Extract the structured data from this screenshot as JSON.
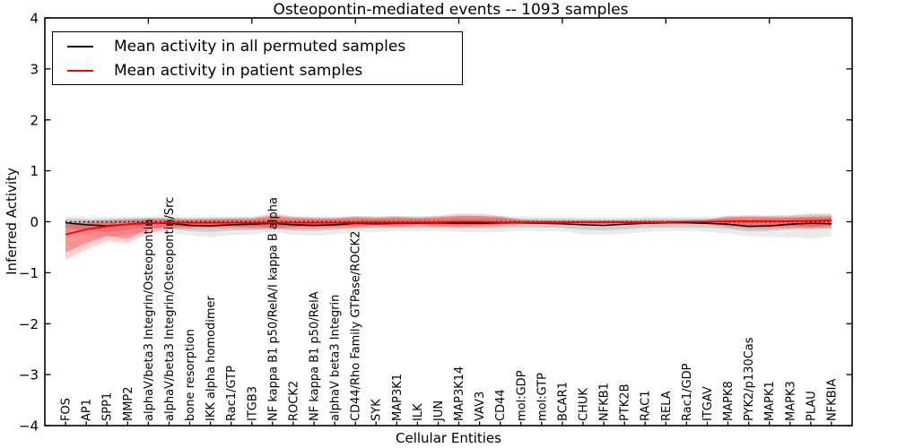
{
  "chart_data": {
    "type": "line",
    "title": "Osteopontin-mediated events -- 1093 samples",
    "xlabel": "Cellular Entities",
    "ylabel": "Inferred Activity",
    "ylim": [
      -4,
      4
    ],
    "yticks": [
      -4,
      -3,
      -2,
      -1,
      0,
      1,
      2,
      3,
      4
    ],
    "xticks_top_values": [
      5,
      10,
      15,
      20,
      25,
      30,
      35
    ],
    "zero_line": true,
    "grid": false,
    "legend_position": "upper left",
    "categories": [
      "FOS",
      "AP1",
      "SPP1",
      "MMP2",
      "alphaV/beta3 Integrin/Osteopontin",
      "alphaV/beta3 Integrin/Osteopontin/Src",
      "bone resorption",
      "IKK alpha homodimer",
      "Rac1/GTP",
      "ITGB3",
      "NF kappa B1 p50/RelA/I kappa B alpha",
      "ROCK2",
      "NF kappa B1 p50/RelA",
      "alphaV beta3 Integrin",
      "CD44/Rho Family GTPase/ROCK2",
      "SYK",
      "MAP3K1",
      "ILK",
      "JUN",
      "MAP3K14",
      "VAV3",
      "CD44",
      "mol:GDP",
      "mol:GTP",
      "BCAR1",
      "CHUK",
      "NFKB1",
      "PTK2B",
      "RAC1",
      "RELA",
      "Rac1/GDP",
      "ITGAV",
      "MAPK8",
      "PYK2/p130Cas",
      "MAPK1",
      "MAPK3",
      "PLAU",
      "NFKBIA"
    ],
    "series": [
      {
        "name": "Mean activity in all permuted samples",
        "color": "#000000",
        "values": [
          -0.02,
          -0.06,
          -0.08,
          -0.05,
          -0.02,
          -0.03,
          -0.07,
          -0.08,
          -0.06,
          -0.05,
          -0.03,
          -0.06,
          -0.07,
          -0.06,
          -0.03,
          -0.04,
          -0.03,
          -0.03,
          -0.02,
          -0.03,
          -0.03,
          -0.02,
          -0.02,
          -0.03,
          -0.04,
          -0.06,
          -0.07,
          -0.05,
          -0.03,
          -0.02,
          -0.02,
          -0.03,
          -0.05,
          -0.09,
          -0.08,
          -0.05,
          -0.03,
          -0.04
        ]
      },
      {
        "name": "Mean activity in patient samples",
        "color": "#ff0000",
        "values": [
          -0.25,
          -0.15,
          -0.09,
          -0.05,
          -0.03,
          -0.02,
          -0.02,
          -0.02,
          -0.02,
          -0.02,
          -0.01,
          -0.02,
          -0.02,
          -0.02,
          -0.01,
          -0.01,
          -0.01,
          -0.01,
          -0.01,
          0.0,
          0.0,
          -0.01,
          -0.01,
          -0.01,
          -0.01,
          -0.01,
          -0.01,
          -0.01,
          -0.01,
          -0.01,
          0.0,
          0.0,
          0.01,
          0.01,
          0.01,
          0.01,
          0.02,
          0.03
        ]
      }
    ],
    "bands": [
      {
        "name": "permuted-outer",
        "color": "rgba(0,0,0,0.08)",
        "upper": [
          0.1,
          0.09,
          0.09,
          0.1,
          0.1,
          0.1,
          0.09,
          0.09,
          0.1,
          0.1,
          0.1,
          0.09,
          0.09,
          0.09,
          0.1,
          0.1,
          0.1,
          0.1,
          0.1,
          0.11,
          0.11,
          0.11,
          0.1,
          0.1,
          0.1,
          0.09,
          0.09,
          0.09,
          0.1,
          0.1,
          0.1,
          0.1,
          0.11,
          0.1,
          0.12,
          0.14,
          0.17,
          0.16
        ],
        "lower": [
          -0.2,
          -0.26,
          -0.3,
          -0.25,
          -0.2,
          -0.21,
          -0.27,
          -0.3,
          -0.26,
          -0.25,
          -0.2,
          -0.26,
          -0.27,
          -0.25,
          -0.2,
          -0.21,
          -0.18,
          -0.19,
          -0.18,
          -0.2,
          -0.21,
          -0.2,
          -0.18,
          -0.18,
          -0.19,
          -0.25,
          -0.26,
          -0.24,
          -0.2,
          -0.18,
          -0.18,
          -0.2,
          -0.23,
          -0.29,
          -0.3,
          -0.3,
          -0.34,
          -0.28
        ]
      },
      {
        "name": "permuted-inner",
        "color": "rgba(0,0,0,0.13)",
        "upper": [
          0.06,
          0.05,
          0.05,
          0.06,
          0.06,
          0.06,
          0.05,
          0.05,
          0.06,
          0.06,
          0.06,
          0.05,
          0.05,
          0.05,
          0.06,
          0.06,
          0.06,
          0.06,
          0.06,
          0.07,
          0.07,
          0.07,
          0.06,
          0.06,
          0.06,
          0.05,
          0.05,
          0.05,
          0.06,
          0.06,
          0.06,
          0.06,
          0.06,
          0.05,
          0.06,
          0.07,
          0.08,
          0.08
        ],
        "lower": [
          -0.12,
          -0.17,
          -0.2,
          -0.16,
          -0.12,
          -0.13,
          -0.18,
          -0.2,
          -0.17,
          -0.16,
          -0.12,
          -0.17,
          -0.18,
          -0.16,
          -0.12,
          -0.13,
          -0.11,
          -0.12,
          -0.11,
          -0.12,
          -0.13,
          -0.12,
          -0.11,
          -0.11,
          -0.12,
          -0.16,
          -0.17,
          -0.15,
          -0.12,
          -0.11,
          -0.11,
          -0.12,
          -0.14,
          -0.19,
          -0.18,
          -0.15,
          -0.13,
          -0.14
        ]
      },
      {
        "name": "patient-outer",
        "color": "rgba(255,0,0,0.18)",
        "upper": [
          0.0,
          0.02,
          0.04,
          0.06,
          0.08,
          0.08,
          0.07,
          0.08,
          0.08,
          0.08,
          0.17,
          0.11,
          0.09,
          0.09,
          0.12,
          0.1,
          0.12,
          0.1,
          0.12,
          0.16,
          0.16,
          0.12,
          0.05,
          0.03,
          0.03,
          0.03,
          0.03,
          0.03,
          0.03,
          0.03,
          0.03,
          0.05,
          0.12,
          0.13,
          0.12,
          0.12,
          0.14,
          0.15
        ],
        "lower": [
          -0.75,
          -0.55,
          -0.38,
          -0.42,
          -0.22,
          -0.15,
          -0.14,
          -0.13,
          -0.13,
          -0.14,
          -0.16,
          -0.14,
          -0.14,
          -0.13,
          -0.13,
          -0.09,
          -0.12,
          -0.08,
          -0.1,
          -0.12,
          -0.1,
          -0.08,
          -0.05,
          -0.03,
          -0.03,
          -0.03,
          -0.03,
          -0.03,
          -0.03,
          -0.03,
          -0.03,
          -0.05,
          -0.11,
          -0.13,
          -0.14,
          -0.13,
          -0.14,
          -0.12
        ]
      },
      {
        "name": "patient-inner",
        "color": "rgba(255,0,0,0.30)",
        "upper": [
          -0.05,
          -0.02,
          0.0,
          0.02,
          0.05,
          0.05,
          0.04,
          0.05,
          0.05,
          0.05,
          0.13,
          0.08,
          0.06,
          0.06,
          0.09,
          0.07,
          0.09,
          0.07,
          0.09,
          0.12,
          0.12,
          0.09,
          0.03,
          0.02,
          0.02,
          0.02,
          0.02,
          0.02,
          0.02,
          0.02,
          0.02,
          0.03,
          0.09,
          0.1,
          0.09,
          0.09,
          0.1,
          0.11
        ],
        "lower": [
          -0.6,
          -0.42,
          -0.28,
          -0.33,
          -0.15,
          -0.1,
          -0.1,
          -0.09,
          -0.09,
          -0.1,
          -0.11,
          -0.1,
          -0.1,
          -0.09,
          -0.09,
          -0.06,
          -0.08,
          -0.05,
          -0.07,
          -0.08,
          -0.07,
          -0.05,
          -0.03,
          -0.02,
          -0.02,
          -0.02,
          -0.02,
          -0.02,
          -0.02,
          -0.02,
          -0.02,
          -0.03,
          -0.07,
          -0.09,
          -0.1,
          -0.09,
          -0.1,
          -0.08
        ]
      }
    ]
  }
}
